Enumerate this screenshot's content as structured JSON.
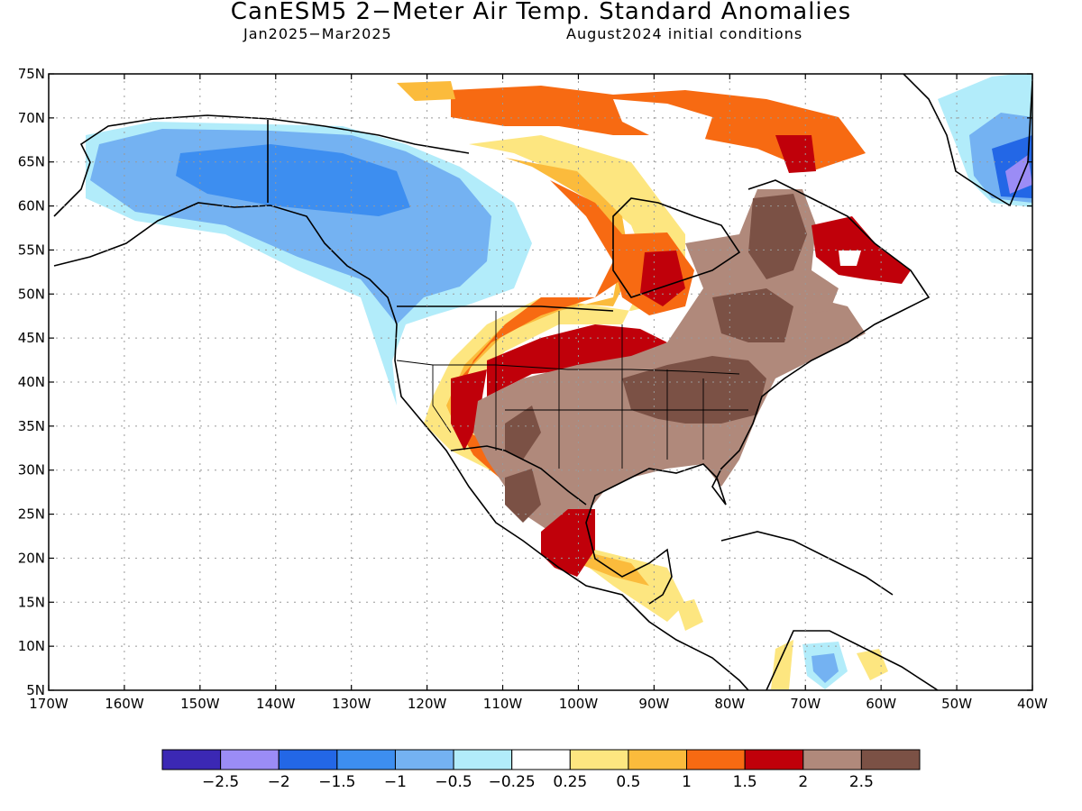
{
  "header": {
    "title": "CanESM5 2−Meter Air Temp. Standard Anomalies",
    "period": "Jan2025−Mar2025",
    "init": "August2024 initial conditions"
  },
  "map": {
    "lat_labels": [
      "75N",
      "70N",
      "65N",
      "60N",
      "55N",
      "50N",
      "45N",
      "40N",
      "35N",
      "30N",
      "25N",
      "20N",
      "15N",
      "10N",
      "5N"
    ],
    "lon_labels": [
      "170W",
      "160W",
      "150W",
      "140W",
      "130W",
      "120W",
      "110W",
      "100W",
      "90W",
      "80W",
      "70W",
      "60W",
      "50W",
      "40W"
    ]
  },
  "colorbar": {
    "colors": [
      "#3b28b4",
      "#9b8cf6",
      "#2367e6",
      "#3d8ef0",
      "#74b2f2",
      "#b2ecfa",
      "#ffffff",
      "#fde680",
      "#fbbb3c",
      "#f76a12",
      "#c0000a",
      "#b0897b",
      "#7b5145"
    ],
    "labels": [
      "−2.5",
      "−2",
      "−1.5",
      "−1",
      "−0.5",
      "−0.25",
      "0.25",
      "0.5",
      "1",
      "1.5",
      "2",
      "2.5"
    ]
  }
}
